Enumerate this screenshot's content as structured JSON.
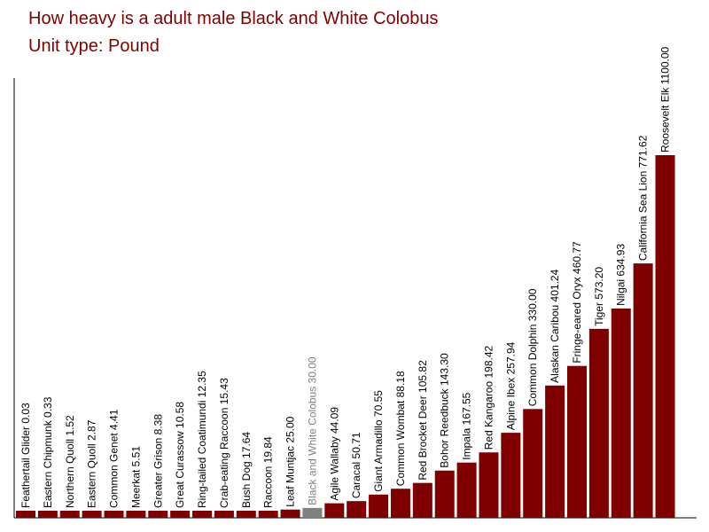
{
  "title": "How heavy is a adult male Black and White Colobus",
  "subtitle": "Unit type: Pound",
  "colors": {
    "bar": "#800000",
    "highlight": "#808080",
    "text": "#800000",
    "axis": "#000000"
  },
  "chart_data": {
    "type": "bar",
    "title": "How heavy is a adult male Black and White Colobus",
    "subtitle": "Unit type: Pound",
    "highlight": "Black and White Colobus",
    "categories": [
      "Feathertail Glider",
      "Eastern Chipmunk",
      "Northern Quoll",
      "Eastern Quoll",
      "Common Genet",
      "Meerkat",
      "Greater Grison",
      "Great Curassow",
      "Ring-tailed Coatimundi",
      "Crab-eating Raccoon",
      "Bush Dog",
      "Raccoon",
      "Leaf Muntjac",
      "Black and White Colobus",
      "Agile Wallaby",
      "Caracal",
      "Giant Armadillo",
      "Common Wombat",
      "Red Brocket Deer",
      "Bohor Reedbuck",
      "Impala",
      "Red Kangaroo",
      "Alpine Ibex",
      "Common Dolphin",
      "Alaskan Caribou",
      "Fringe-eared Oryx",
      "Tiger",
      "Nilgai",
      "California Sea Lion",
      "Roosevelt Elk"
    ],
    "values": [
      0.03,
      0.33,
      1.52,
      2.87,
      4.41,
      5.51,
      8.38,
      10.58,
      12.35,
      15.43,
      17.64,
      19.84,
      25.0,
      30.0,
      44.09,
      50.71,
      70.55,
      88.18,
      105.82,
      143.3,
      167.55,
      198.42,
      257.94,
      330.0,
      401.24,
      460.77,
      573.2,
      634.93,
      771.62,
      1100.0
    ],
    "labels": [
      "Feathertail Glider 0.03",
      "Eastern Chipmunk 0.33",
      "Northern Quoll 1.52",
      "Eastern Quoll 2.87",
      "Common Genet 4.41",
      "Meerkat 5.51",
      "Greater Grison 8.38",
      "Great Curassow 10.58",
      "Ring-tailed Coatimundi 12.35",
      "Crab-eating Raccoon 15.43",
      "Bush Dog 17.64",
      "Raccoon 19.84",
      "Leaf Muntjac 25.00",
      "Black and White Colobus 30.00",
      "Agile Wallaby 44.09",
      "Caracal 50.71",
      "Giant Armadillo 70.55",
      "Common Wombat 88.18",
      "Red Brocket Deer 105.82",
      "Bohor Reedbuck 143.30",
      "Impala 167.55",
      "Red Kangaroo 198.42",
      "Alpine Ibex 257.94",
      "Common Dolphin 330.00",
      "Alaskan Caribou 401.24",
      "Fringe-eared Oryx 460.77",
      "Tiger 573.20",
      "Nilgai 634.93",
      "California Sea Lion 771.62",
      "Roosevelt Elk 1100.00"
    ]
  }
}
